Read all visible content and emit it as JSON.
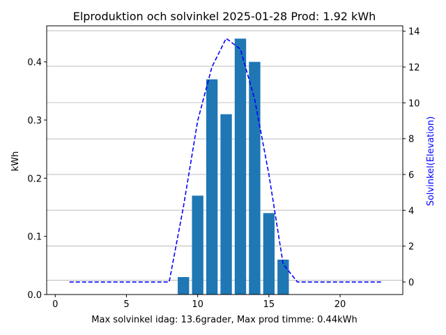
{
  "chart_data": {
    "type": "bar+line",
    "title": "Elproduktion och solvinkel 2025-01-28 Prod: 1.92 kWh",
    "xlabel": "Max solvinkel idag: 13.6grader, Max prod timme: 0.44kWh",
    "ylabel": "kWh",
    "y2label": "Solvinkel(Elevation)",
    "xlim": [
      -0.6,
      24.4
    ],
    "ylim": [
      0,
      0.462
    ],
    "y2lim": [
      -0.7,
      14.3
    ],
    "x_ticks": [
      0,
      5,
      10,
      15,
      20
    ],
    "y_ticks": [
      0.0,
      0.1,
      0.2,
      0.3,
      0.4
    ],
    "y2_ticks": [
      0,
      2,
      4,
      6,
      8,
      10,
      12,
      14
    ],
    "y_gridlines": [
      0.0245,
      0.0835,
      0.145,
      0.2065,
      0.2675,
      0.33,
      0.3925,
      0.4535
    ],
    "grid": "horizontal",
    "bar_color": "#1f77b4",
    "line_color": "#0000ff",
    "bars": {
      "name": "Produktion",
      "x": [
        9,
        10,
        11,
        12,
        13,
        14,
        15,
        16
      ],
      "values": [
        0.03,
        0.17,
        0.37,
        0.31,
        0.44,
        0.4,
        0.14,
        0.06
      ]
    },
    "line": {
      "name": "Solvinkel",
      "style": "dashed",
      "x": [
        1,
        2,
        3,
        4,
        5,
        6,
        7,
        8,
        9,
        10,
        11,
        12,
        13,
        14,
        15,
        16,
        17,
        18,
        19,
        20,
        21,
        22,
        23
      ],
      "values": [
        0,
        0,
        0,
        0,
        0,
        0,
        0,
        0,
        4.2,
        9.0,
        12.0,
        13.6,
        13.0,
        10.2,
        6.0,
        1.0,
        0,
        0,
        0,
        0,
        0,
        0,
        0
      ]
    }
  }
}
